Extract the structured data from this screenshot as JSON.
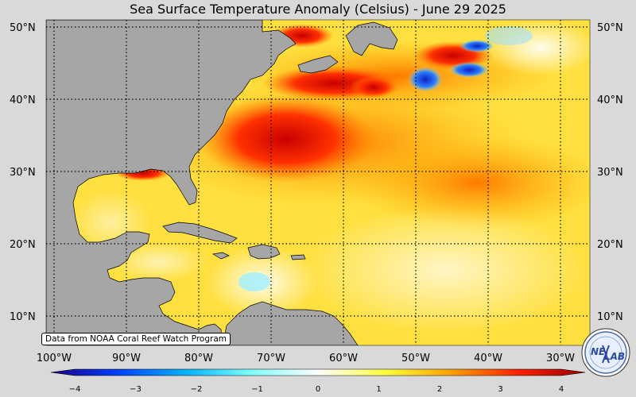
{
  "title": "Sea Surface Temperature Anomaly (Celsius) - June 29 2025",
  "credit": "Data from NOAA Coral Reef Watch Program",
  "logo_text": [
    "NE",
    "LAB"
  ],
  "lat_labels": [
    "50°N",
    "40°N",
    "30°N",
    "20°N",
    "10°N"
  ],
  "lon_labels": [
    "100°W",
    "90°W",
    "80°W",
    "70°W",
    "60°W",
    "50°W",
    "40°W",
    "30°W"
  ],
  "colorbar": {
    "ticks": [
      "−4",
      "−3",
      "−2",
      "−1",
      "0",
      "1",
      "2",
      "3",
      "4"
    ],
    "range": [
      -4,
      4
    ],
    "colors": [
      "#1a0080",
      "#0040ff",
      "#00b0ff",
      "#80ffff",
      "#ffffff",
      "#ffff40",
      "#ffa000",
      "#ff2000",
      "#990000"
    ]
  },
  "colors": {
    "land": "#a6a6a6",
    "ocean_base": "#ffe040",
    "warm": "#ff6000",
    "hot": "#c80000",
    "cold": "#1020c0"
  }
}
